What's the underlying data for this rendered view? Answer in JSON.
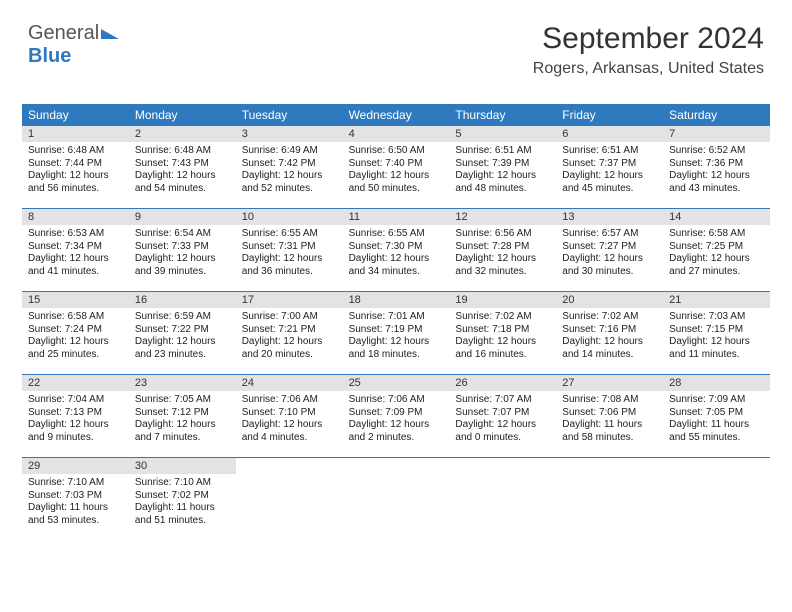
{
  "logo": {
    "line1": "General",
    "line2": "Blue"
  },
  "title": "September 2024",
  "location": "Rogers, Arkansas, United States",
  "colors": {
    "header_bg": "#2f7abf",
    "daynum_bg": "#e3e3e3",
    "border": "#2f7abf",
    "text": "#222222",
    "background": "#ffffff"
  },
  "daynames": [
    "Sunday",
    "Monday",
    "Tuesday",
    "Wednesday",
    "Thursday",
    "Friday",
    "Saturday"
  ],
  "weeks": [
    [
      {
        "n": "1",
        "sr": "6:48 AM",
        "ss": "7:44 PM",
        "dl": "12 hours and 56 minutes."
      },
      {
        "n": "2",
        "sr": "6:48 AM",
        "ss": "7:43 PM",
        "dl": "12 hours and 54 minutes."
      },
      {
        "n": "3",
        "sr": "6:49 AM",
        "ss": "7:42 PM",
        "dl": "12 hours and 52 minutes."
      },
      {
        "n": "4",
        "sr": "6:50 AM",
        "ss": "7:40 PM",
        "dl": "12 hours and 50 minutes."
      },
      {
        "n": "5",
        "sr": "6:51 AM",
        "ss": "7:39 PM",
        "dl": "12 hours and 48 minutes."
      },
      {
        "n": "6",
        "sr": "6:51 AM",
        "ss": "7:37 PM",
        "dl": "12 hours and 45 minutes."
      },
      {
        "n": "7",
        "sr": "6:52 AM",
        "ss": "7:36 PM",
        "dl": "12 hours and 43 minutes."
      }
    ],
    [
      {
        "n": "8",
        "sr": "6:53 AM",
        "ss": "7:34 PM",
        "dl": "12 hours and 41 minutes."
      },
      {
        "n": "9",
        "sr": "6:54 AM",
        "ss": "7:33 PM",
        "dl": "12 hours and 39 minutes."
      },
      {
        "n": "10",
        "sr": "6:55 AM",
        "ss": "7:31 PM",
        "dl": "12 hours and 36 minutes."
      },
      {
        "n": "11",
        "sr": "6:55 AM",
        "ss": "7:30 PM",
        "dl": "12 hours and 34 minutes."
      },
      {
        "n": "12",
        "sr": "6:56 AM",
        "ss": "7:28 PM",
        "dl": "12 hours and 32 minutes."
      },
      {
        "n": "13",
        "sr": "6:57 AM",
        "ss": "7:27 PM",
        "dl": "12 hours and 30 minutes."
      },
      {
        "n": "14",
        "sr": "6:58 AM",
        "ss": "7:25 PM",
        "dl": "12 hours and 27 minutes."
      }
    ],
    [
      {
        "n": "15",
        "sr": "6:58 AM",
        "ss": "7:24 PM",
        "dl": "12 hours and 25 minutes."
      },
      {
        "n": "16",
        "sr": "6:59 AM",
        "ss": "7:22 PM",
        "dl": "12 hours and 23 minutes."
      },
      {
        "n": "17",
        "sr": "7:00 AM",
        "ss": "7:21 PM",
        "dl": "12 hours and 20 minutes."
      },
      {
        "n": "18",
        "sr": "7:01 AM",
        "ss": "7:19 PM",
        "dl": "12 hours and 18 minutes."
      },
      {
        "n": "19",
        "sr": "7:02 AM",
        "ss": "7:18 PM",
        "dl": "12 hours and 16 minutes."
      },
      {
        "n": "20",
        "sr": "7:02 AM",
        "ss": "7:16 PM",
        "dl": "12 hours and 14 minutes."
      },
      {
        "n": "21",
        "sr": "7:03 AM",
        "ss": "7:15 PM",
        "dl": "12 hours and 11 minutes."
      }
    ],
    [
      {
        "n": "22",
        "sr": "7:04 AM",
        "ss": "7:13 PM",
        "dl": "12 hours and 9 minutes."
      },
      {
        "n": "23",
        "sr": "7:05 AM",
        "ss": "7:12 PM",
        "dl": "12 hours and 7 minutes."
      },
      {
        "n": "24",
        "sr": "7:06 AM",
        "ss": "7:10 PM",
        "dl": "12 hours and 4 minutes."
      },
      {
        "n": "25",
        "sr": "7:06 AM",
        "ss": "7:09 PM",
        "dl": "12 hours and 2 minutes."
      },
      {
        "n": "26",
        "sr": "7:07 AM",
        "ss": "7:07 PM",
        "dl": "12 hours and 0 minutes."
      },
      {
        "n": "27",
        "sr": "7:08 AM",
        "ss": "7:06 PM",
        "dl": "11 hours and 58 minutes."
      },
      {
        "n": "28",
        "sr": "7:09 AM",
        "ss": "7:05 PM",
        "dl": "11 hours and 55 minutes."
      }
    ],
    [
      {
        "n": "29",
        "sr": "7:10 AM",
        "ss": "7:03 PM",
        "dl": "11 hours and 53 minutes."
      },
      {
        "n": "30",
        "sr": "7:10 AM",
        "ss": "7:02 PM",
        "dl": "11 hours and 51 minutes."
      },
      null,
      null,
      null,
      null,
      null
    ]
  ],
  "labels": {
    "sunrise": "Sunrise:",
    "sunset": "Sunset:",
    "daylight": "Daylight:"
  }
}
